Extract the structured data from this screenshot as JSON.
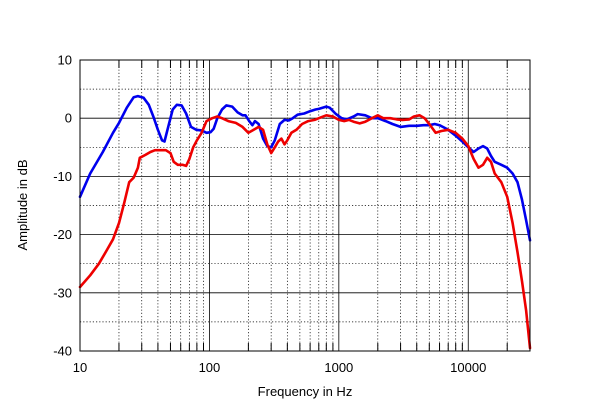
{
  "chart_data": {
    "type": "line",
    "xlabel": "Frequency in Hz",
    "ylabel": "Amplitude in dB",
    "xscale": "log",
    "xlim": [
      10,
      30000
    ],
    "ylim": [
      -40,
      10
    ],
    "xticks": [
      {
        "value": 10,
        "label": "10"
      },
      {
        "value": 100,
        "label": "100"
      },
      {
        "value": 1000,
        "label": "1000"
      },
      {
        "value": 10000,
        "label": "10000"
      }
    ],
    "yticks": [
      {
        "value": 10,
        "label": "10"
      },
      {
        "value": 0,
        "label": "0"
      },
      {
        "value": -10,
        "label": "-10"
      },
      {
        "value": -20,
        "label": "-20"
      },
      {
        "value": -30,
        "label": "-30"
      },
      {
        "value": -40,
        "label": "-40"
      }
    ],
    "grid": true,
    "series": [
      {
        "color": "#0000ee",
        "points": [
          [
            10,
            -13.5
          ],
          [
            12,
            -9.5
          ],
          [
            15,
            -5.8
          ],
          [
            18,
            -2.5
          ],
          [
            20,
            -0.8
          ],
          [
            23,
            1.8
          ],
          [
            26,
            3.6
          ],
          [
            28,
            3.8
          ],
          [
            31,
            3.5
          ],
          [
            34,
            2.3
          ],
          [
            37,
            0.2
          ],
          [
            40,
            -2.0
          ],
          [
            43,
            -3.8
          ],
          [
            45,
            -4.0
          ],
          [
            48,
            -1.5
          ],
          [
            52,
            1.5
          ],
          [
            56,
            2.3
          ],
          [
            61,
            2.2
          ],
          [
            66,
            0.8
          ],
          [
            72,
            -1.5
          ],
          [
            79,
            -2.0
          ],
          [
            87,
            -2.1
          ],
          [
            95,
            -2.5
          ],
          [
            102,
            -2.4
          ],
          [
            108,
            -1.8
          ],
          [
            115,
            0.0
          ],
          [
            125,
            1.5
          ],
          [
            135,
            2.2
          ],
          [
            150,
            2.0
          ],
          [
            165,
            1.0
          ],
          [
            180,
            0.5
          ],
          [
            190,
            0.5
          ],
          [
            203,
            -0.5
          ],
          [
            215,
            -1.2
          ],
          [
            225,
            -0.5
          ],
          [
            240,
            -1.0
          ],
          [
            260,
            -3.5
          ],
          [
            280,
            -4.8
          ],
          [
            300,
            -5.0
          ],
          [
            320,
            -3.8
          ],
          [
            350,
            -1.0
          ],
          [
            380,
            -0.3
          ],
          [
            410,
            -0.4
          ],
          [
            440,
            0.0
          ],
          [
            480,
            0.6
          ],
          [
            540,
            0.8
          ],
          [
            600,
            1.2
          ],
          [
            660,
            1.5
          ],
          [
            700,
            1.6
          ],
          [
            800,
            2.0
          ],
          [
            850,
            1.8
          ],
          [
            950,
            0.7
          ],
          [
            1050,
            0.0
          ],
          [
            1150,
            -0.2
          ],
          [
            1300,
            0.3
          ],
          [
            1400,
            0.7
          ],
          [
            1600,
            0.5
          ],
          [
            1800,
            0.0
          ],
          [
            2000,
            0.0
          ],
          [
            2300,
            -0.5
          ],
          [
            2600,
            -1.0
          ],
          [
            3000,
            -1.5
          ],
          [
            3500,
            -1.3
          ],
          [
            4000,
            -1.3
          ],
          [
            4500,
            -1.2
          ],
          [
            5000,
            -1.2
          ],
          [
            5500,
            -1.0
          ],
          [
            6000,
            -1.2
          ],
          [
            6500,
            -1.6
          ],
          [
            7000,
            -2.0
          ],
          [
            8000,
            -3.0
          ],
          [
            9000,
            -4.0
          ],
          [
            10000,
            -5.0
          ],
          [
            11000,
            -5.8
          ],
          [
            12000,
            -5.2
          ],
          [
            13000,
            -4.8
          ],
          [
            14000,
            -5.2
          ],
          [
            15000,
            -6.5
          ],
          [
            16000,
            -7.5
          ],
          [
            18000,
            -8.0
          ],
          [
            20000,
            -8.5
          ],
          [
            22000,
            -9.5
          ],
          [
            24000,
            -11.0
          ],
          [
            26000,
            -14.0
          ],
          [
            28000,
            -17.5
          ],
          [
            30000,
            -21.0
          ]
        ]
      },
      {
        "color": "#ee0000",
        "points": [
          [
            10,
            -29.0
          ],
          [
            12,
            -27.0
          ],
          [
            14,
            -25.0
          ],
          [
            16,
            -22.8
          ],
          [
            18,
            -20.8
          ],
          [
            20,
            -18.0
          ],
          [
            22,
            -14.5
          ],
          [
            24,
            -11.0
          ],
          [
            26,
            -10.2
          ],
          [
            28,
            -8.5
          ],
          [
            29,
            -6.8
          ],
          [
            32,
            -6.3
          ],
          [
            35,
            -5.8
          ],
          [
            38,
            -5.5
          ],
          [
            42,
            -5.5
          ],
          [
            46,
            -5.5
          ],
          [
            50,
            -6.0
          ],
          [
            53,
            -7.5
          ],
          [
            57,
            -8.0
          ],
          [
            62,
            -8.0
          ],
          [
            66,
            -8.2
          ],
          [
            70,
            -7.0
          ],
          [
            75,
            -5.0
          ],
          [
            80,
            -3.8
          ],
          [
            87,
            -2.5
          ],
          [
            95,
            -0.5
          ],
          [
            105,
            0.0
          ],
          [
            115,
            0.3
          ],
          [
            125,
            0.0
          ],
          [
            140,
            -0.5
          ],
          [
            160,
            -0.8
          ],
          [
            180,
            -1.5
          ],
          [
            200,
            -2.5
          ],
          [
            220,
            -2.0
          ],
          [
            240,
            -1.5
          ],
          [
            260,
            -2.0
          ],
          [
            280,
            -4.5
          ],
          [
            300,
            -6.0
          ],
          [
            320,
            -5.0
          ],
          [
            340,
            -4.0
          ],
          [
            360,
            -3.5
          ],
          [
            380,
            -4.5
          ],
          [
            400,
            -3.8
          ],
          [
            430,
            -2.5
          ],
          [
            470,
            -2.0
          ],
          [
            520,
            -1.0
          ],
          [
            580,
            -0.5
          ],
          [
            650,
            -0.3
          ],
          [
            700,
            0.0
          ],
          [
            800,
            0.5
          ],
          [
            900,
            0.3
          ],
          [
            1000,
            -0.3
          ],
          [
            1100,
            -0.5
          ],
          [
            1200,
            -0.3
          ],
          [
            1300,
            -0.6
          ],
          [
            1450,
            -0.9
          ],
          [
            1600,
            -0.6
          ],
          [
            1800,
            0.0
          ],
          [
            2000,
            0.5
          ],
          [
            2200,
            0.0
          ],
          [
            2500,
            0.0
          ],
          [
            2800,
            -0.2
          ],
          [
            3100,
            -0.3
          ],
          [
            3500,
            -0.2
          ],
          [
            3800,
            0.3
          ],
          [
            4200,
            0.5
          ],
          [
            4600,
            0.0
          ],
          [
            5000,
            -1.0
          ],
          [
            5600,
            -2.5
          ],
          [
            6200,
            -2.2
          ],
          [
            7000,
            -2.0
          ],
          [
            8000,
            -2.5
          ],
          [
            9000,
            -3.5
          ],
          [
            10000,
            -4.8
          ],
          [
            11000,
            -7.0
          ],
          [
            12000,
            -8.5
          ],
          [
            13000,
            -8.0
          ],
          [
            14000,
            -6.8
          ],
          [
            15000,
            -7.5
          ],
          [
            16000,
            -9.5
          ],
          [
            18000,
            -11.0
          ],
          [
            20000,
            -13.5
          ],
          [
            22000,
            -18.0
          ],
          [
            24000,
            -23.0
          ],
          [
            26000,
            -28.0
          ],
          [
            28000,
            -33.0
          ],
          [
            30000,
            -39.5
          ]
        ]
      }
    ]
  }
}
